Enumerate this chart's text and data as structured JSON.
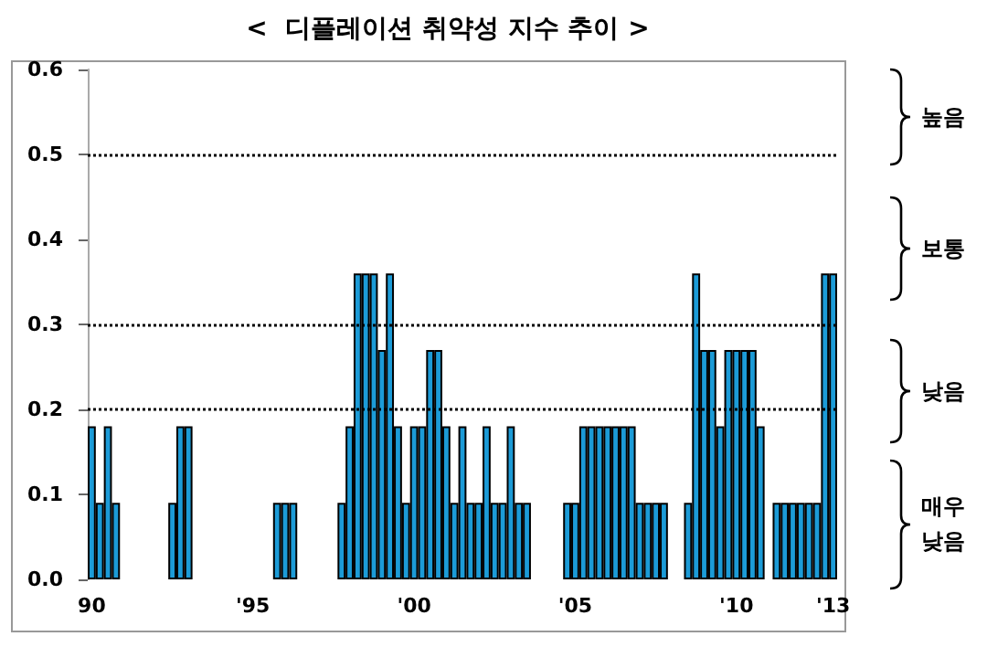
{
  "chart_data": {
    "type": "bar",
    "title": "<  디플레이션 취약성 지수 추이 >",
    "categories": [
      "90",
      null,
      null,
      null,
      null,
      null,
      null,
      null,
      null,
      null,
      null,
      null,
      null,
      null,
      null,
      null,
      null,
      null,
      null,
      null,
      "'95",
      null,
      null,
      null,
      null,
      null,
      null,
      null,
      null,
      null,
      null,
      null,
      null,
      null,
      null,
      null,
      null,
      null,
      null,
      null,
      "'00",
      null,
      null,
      null,
      null,
      null,
      null,
      null,
      null,
      null,
      null,
      null,
      null,
      null,
      null,
      null,
      null,
      null,
      null,
      null,
      "'05",
      null,
      null,
      null,
      null,
      null,
      null,
      null,
      null,
      null,
      null,
      null,
      null,
      null,
      null,
      null,
      null,
      null,
      null,
      null,
      "'10",
      null,
      null,
      null,
      null,
      null,
      null,
      null,
      null,
      null,
      null,
      null,
      "'13"
    ],
    "values": [
      0.18,
      0.09,
      0.18,
      0.09,
      0,
      0,
      0,
      0,
      0,
      0,
      0.09,
      0.18,
      0.18,
      0,
      0,
      0,
      0,
      0,
      0,
      0,
      0,
      0,
      0,
      0.09,
      0.09,
      0.09,
      0,
      0,
      0,
      0,
      0,
      0.09,
      0.18,
      0.36,
      0.36,
      0.36,
      0.27,
      0.36,
      0.18,
      0.09,
      0.18,
      0.18,
      0.27,
      0.27,
      0.18,
      0.09,
      0.18,
      0.09,
      0.09,
      0.18,
      0.09,
      0.09,
      0.18,
      0.09,
      0.09,
      0,
      0,
      0,
      0,
      0.09,
      0.09,
      0.18,
      0.18,
      0.18,
      0.18,
      0.18,
      0.18,
      0.18,
      0.09,
      0.09,
      0.09,
      0.09,
      0,
      0,
      0.09,
      0.36,
      0.27,
      0.27,
      0.18,
      0.27,
      0.27,
      0.27,
      0.27,
      0.18,
      0,
      0.09,
      0.09,
      0.09,
      0.09,
      0.09,
      0.09,
      0.36,
      0.36
    ],
    "color": "#1c9bd7",
    "ylim": [
      0,
      0.6
    ],
    "yticks": [
      {
        "value": 0,
        "label": "0.0"
      },
      0.1,
      0.2,
      0.3,
      0.4,
      0.5,
      0.6
    ],
    "grid": false,
    "ref_lines": [
      {
        "axis": "y",
        "value": 0.5,
        "color": "#000000",
        "line_style": "dotted"
      },
      {
        "axis": "y",
        "value": 0.3,
        "color": "#000000",
        "line_style": "dotted"
      },
      {
        "axis": "y",
        "value": 0.2,
        "color": "#000000",
        "line_style": "dotted"
      }
    ],
    "annotations": [
      "높음",
      "보통",
      "낮음",
      "매우\n낮음"
    ]
  }
}
